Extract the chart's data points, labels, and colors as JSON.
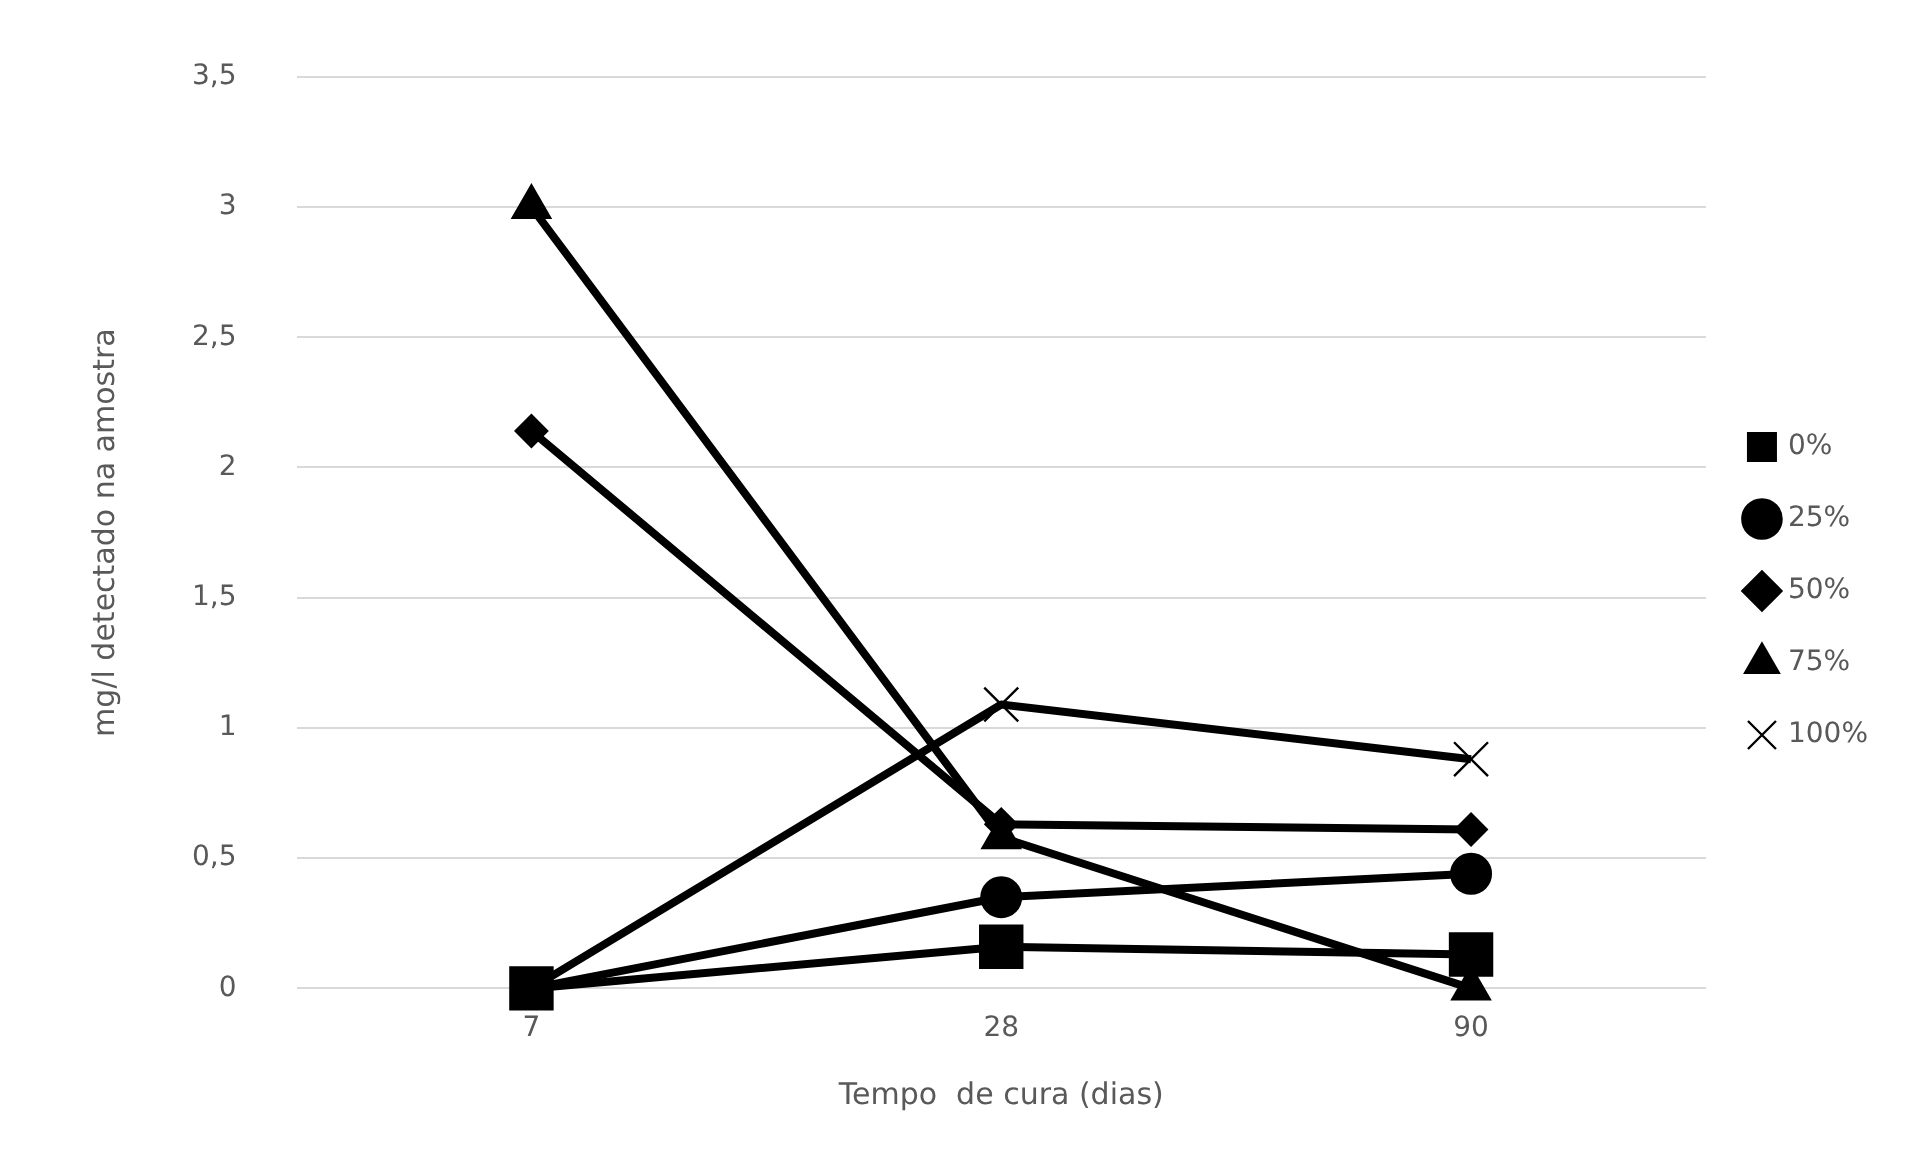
{
  "chart_data": {
    "type": "line",
    "xlabel": "Tempo  de cura (dias)",
    "ylabel": "mg/l detectado na amostra",
    "categories": [
      "7",
      "28",
      "90"
    ],
    "ylim": [
      0,
      3.5
    ],
    "yticks": [
      {
        "value": 0,
        "label": "0"
      },
      {
        "value": 0.5,
        "label": "0,5"
      },
      {
        "value": 1,
        "label": "1"
      },
      {
        "value": 1.5,
        "label": "1,5"
      },
      {
        "value": 2,
        "label": "2"
      },
      {
        "value": 2.5,
        "label": "2,5"
      },
      {
        "value": 3,
        "label": "3"
      },
      {
        "value": 3.5,
        "label": "3,5"
      }
    ],
    "grid": "y",
    "legend": "right",
    "series": [
      {
        "name": "0%",
        "color": "#000000",
        "marker": "square",
        "values": [
          0,
          0.16,
          0.13
        ]
      },
      {
        "name": "25%",
        "color": "#000000",
        "marker": "circle",
        "values": [
          0,
          0.35,
          0.44
        ]
      },
      {
        "name": "50%",
        "color": "#000000",
        "marker": "diamond",
        "values": [
          2.14,
          0.63,
          0.61
        ]
      },
      {
        "name": "75%",
        "color": "#000000",
        "marker": "triangle",
        "values": [
          3,
          0.58,
          0
        ]
      },
      {
        "name": "100%",
        "color": "#000000",
        "marker": "cross",
        "values": [
          0,
          1.09,
          0.88
        ]
      }
    ]
  }
}
